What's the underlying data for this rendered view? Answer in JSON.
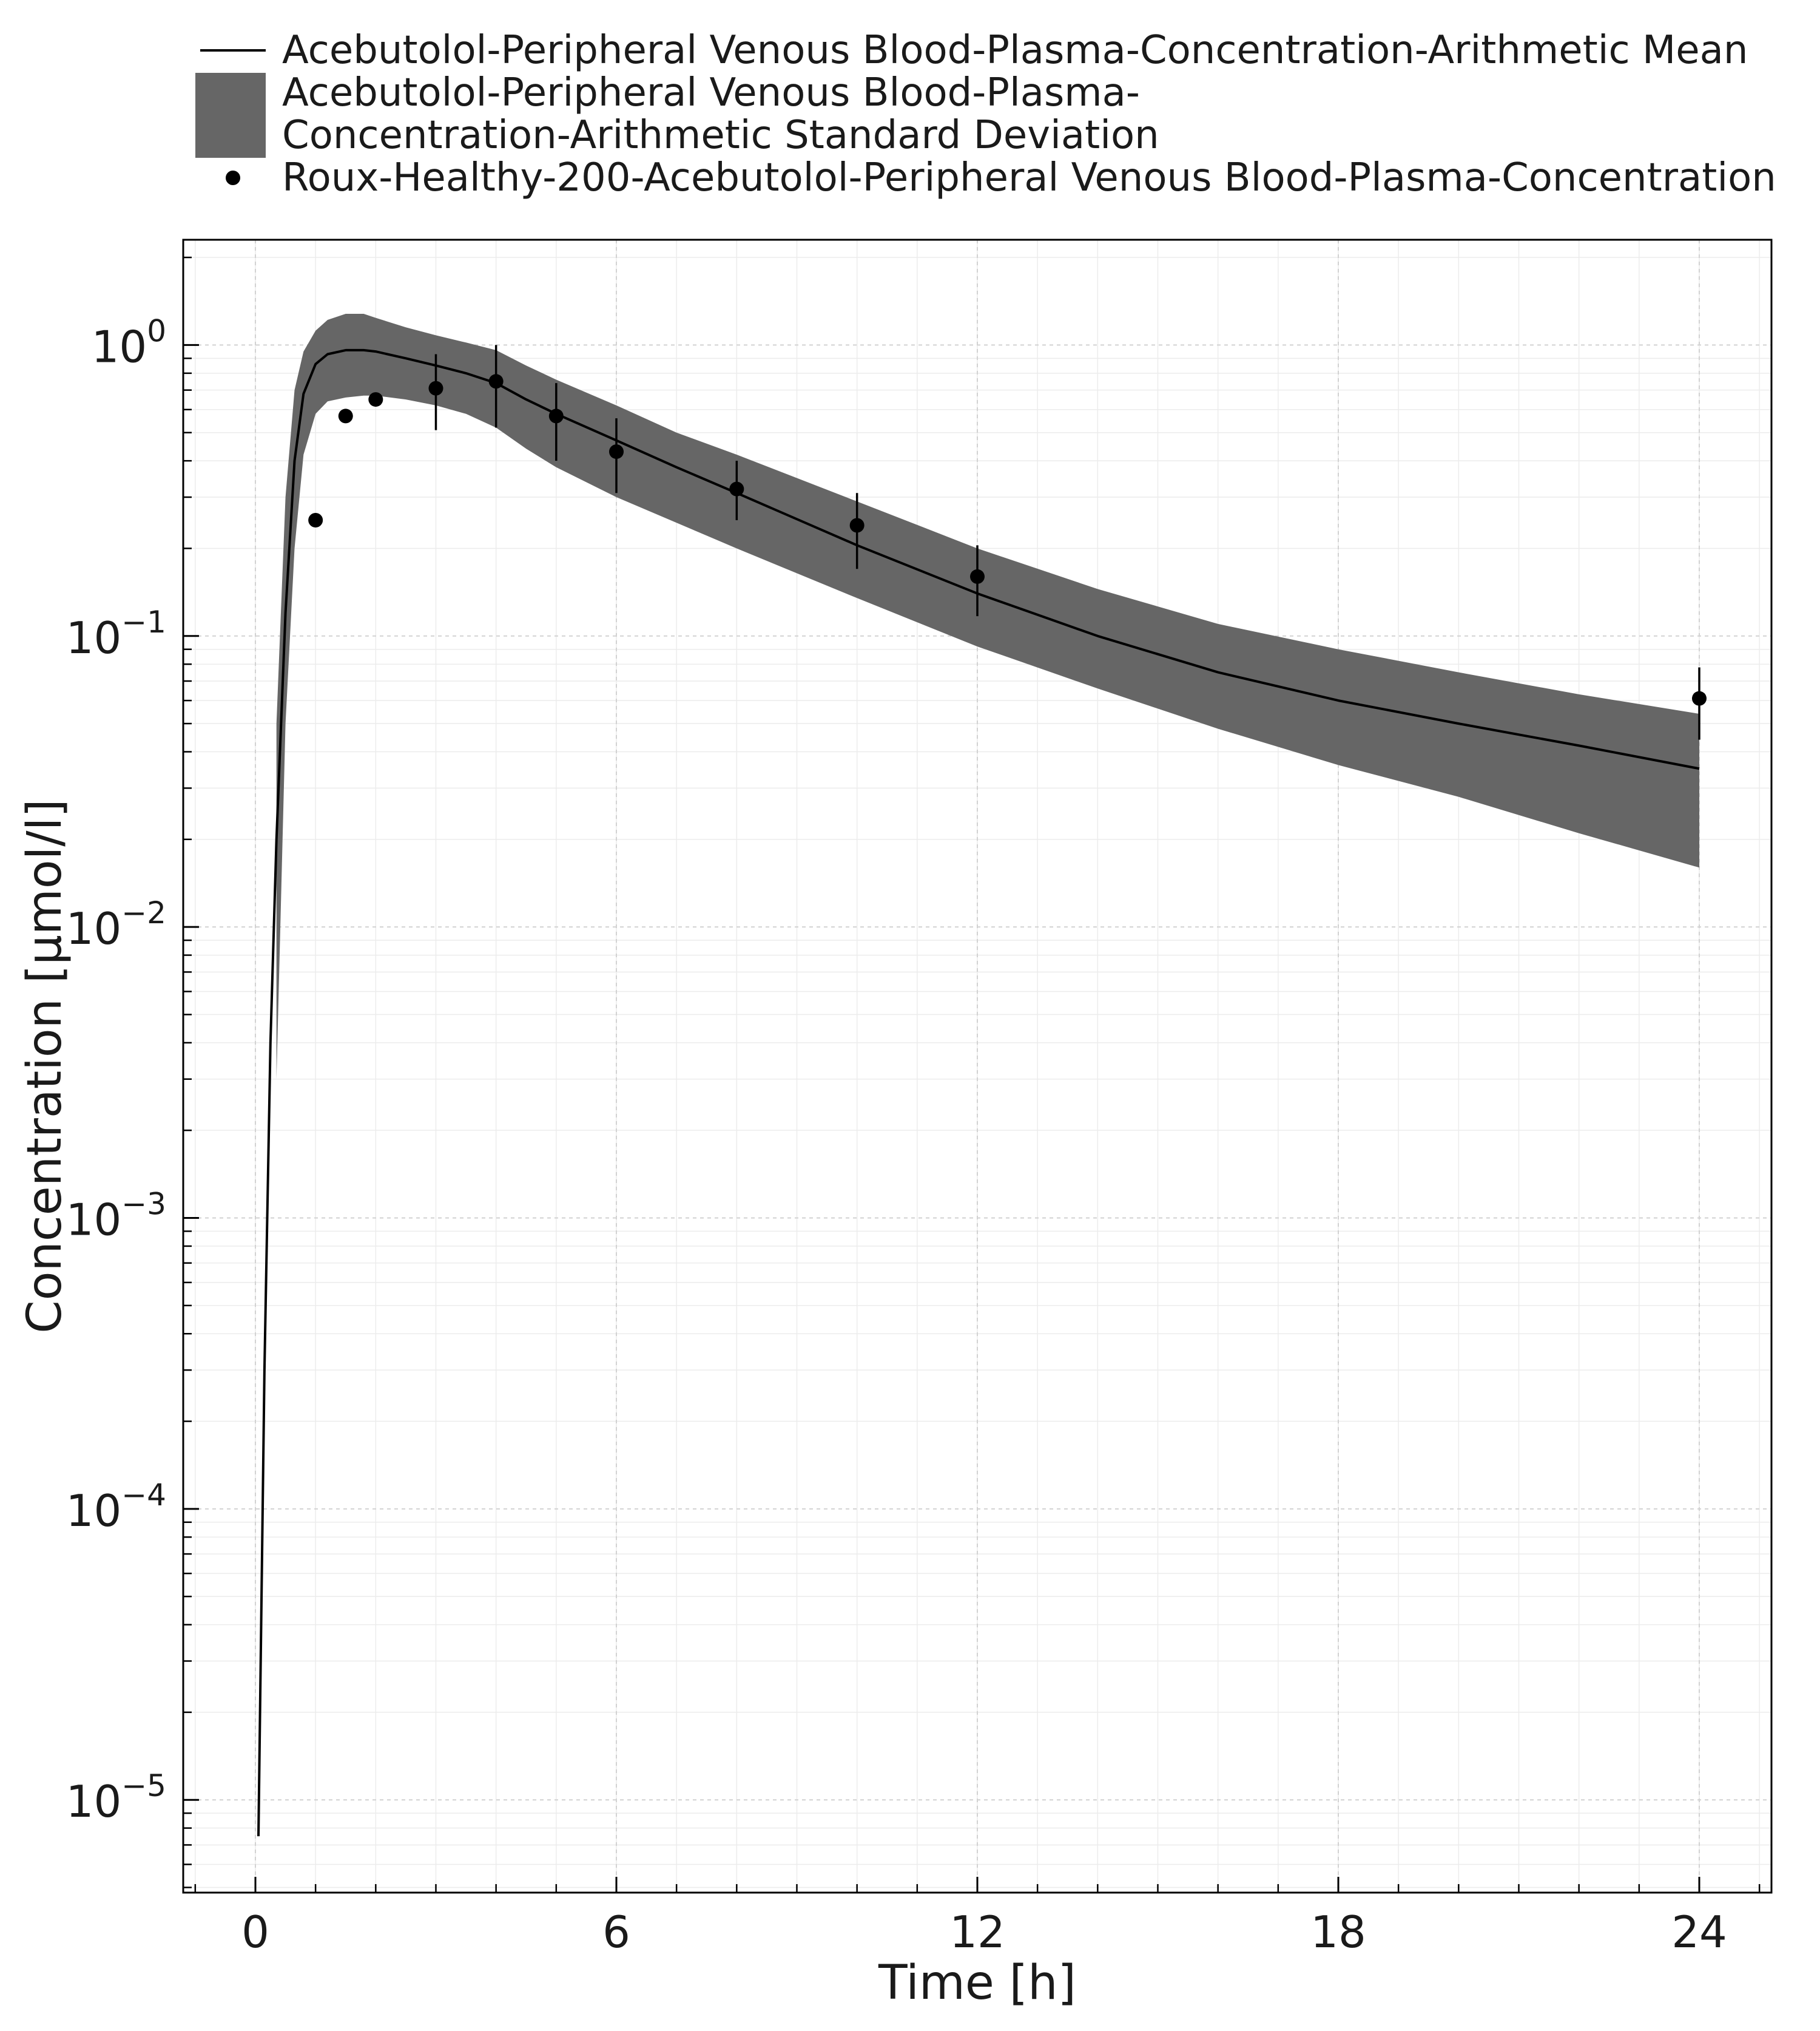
{
  "chart_data": {
    "type": "line",
    "title": "",
    "xlabel": "Time [h]",
    "ylabel": "Concentration [µmol/l]",
    "xlim": [
      -1.2,
      25.2
    ],
    "ylim": [
      4.8e-06,
      2.3
    ],
    "yscale": "log",
    "xticks": [
      0,
      6,
      12,
      18,
      24
    ],
    "xtick_labels": [
      "0",
      "6",
      "12",
      "18",
      "24"
    ],
    "yticks": [
      1e-05,
      0.0001,
      0.001,
      0.01,
      0.1,
      1
    ],
    "ytick_labels": [
      {
        "base": "10",
        "exp": "−5"
      },
      {
        "base": "10",
        "exp": "−4"
      },
      {
        "base": "10",
        "exp": "−3"
      },
      {
        "base": "10",
        "exp": "−2"
      },
      {
        "base": "10",
        "exp": "−1"
      },
      {
        "base": "10",
        "exp": "0"
      }
    ],
    "grid": true,
    "legend_position": "top",
    "legend": [
      {
        "kind": "line",
        "lines": [
          "Acebutolol-Peripheral Venous Blood-Plasma-Concentration-Arithmetic Mean"
        ]
      },
      {
        "kind": "band",
        "lines": [
          "Acebutolol-Peripheral Venous Blood-Plasma-",
          "Concentration-Arithmetic Standard Deviation"
        ]
      },
      {
        "kind": "marker",
        "lines": [
          "Roux-Healthy-200-Acebutolol-Peripheral Venous Blood-Plasma-Concentration"
        ]
      }
    ],
    "series": [
      {
        "name": "Acebutolol-Peripheral Venous Blood-Plasma-Concentration-Arithmetic Mean",
        "type": "line",
        "color": "#000000",
        "x": [
          0.05,
          0.15,
          0.25,
          0.35,
          0.5,
          0.65,
          0.8,
          1.0,
          1.2,
          1.5,
          1.8,
          2.0,
          2.5,
          3.0,
          3.5,
          4.0,
          4.5,
          5.0,
          6.0,
          7.0,
          8.0,
          10.0,
          12.0,
          14.0,
          16.0,
          18.0,
          20.0,
          22.0,
          24.0
        ],
        "y": [
          7.5e-06,
          0.0003,
          0.004,
          0.02,
          0.12,
          0.4,
          0.68,
          0.86,
          0.93,
          0.96,
          0.96,
          0.95,
          0.9,
          0.85,
          0.8,
          0.74,
          0.65,
          0.58,
          0.47,
          0.38,
          0.31,
          0.205,
          0.14,
          0.1,
          0.075,
          0.06,
          0.05,
          0.042,
          0.035
        ]
      },
      {
        "name": "Acebutolol-Peripheral Venous Blood-Plasma-Concentration-Arithmetic Standard Deviation",
        "type": "band",
        "color": "#666666",
        "x": [
          0.35,
          0.5,
          0.65,
          0.8,
          1.0,
          1.2,
          1.5,
          1.8,
          2.0,
          2.5,
          3.0,
          3.5,
          4.0,
          4.5,
          5.0,
          6.0,
          7.0,
          8.0,
          10.0,
          12.0,
          14.0,
          16.0,
          18.0,
          20.0,
          22.0,
          24.0
        ],
        "lower": [
          0.003,
          0.05,
          0.2,
          0.42,
          0.58,
          0.64,
          0.66,
          0.67,
          0.67,
          0.65,
          0.62,
          0.58,
          0.52,
          0.44,
          0.38,
          0.3,
          0.245,
          0.2,
          0.135,
          0.092,
          0.066,
          0.048,
          0.036,
          0.028,
          0.021,
          0.016
        ],
        "upper": [
          0.05,
          0.3,
          0.7,
          0.95,
          1.12,
          1.22,
          1.28,
          1.28,
          1.24,
          1.15,
          1.08,
          1.02,
          0.96,
          0.85,
          0.76,
          0.62,
          0.5,
          0.42,
          0.29,
          0.2,
          0.145,
          0.11,
          0.09,
          0.075,
          0.063,
          0.054
        ]
      },
      {
        "name": "Roux-Healthy-200-Acebutolol-Peripheral Venous Blood-Plasma-Concentration",
        "type": "scatter",
        "color": "#000000",
        "x": [
          1.0,
          1.5,
          2.0,
          3.0,
          4.0,
          5.0,
          6.0,
          8.0,
          10.0,
          12.0,
          24.0
        ],
        "y": [
          0.25,
          0.57,
          0.65,
          0.71,
          0.75,
          0.57,
          0.43,
          0.32,
          0.24,
          0.16,
          0.061
        ],
        "yerr_low": [
          null,
          null,
          null,
          0.51,
          0.52,
          0.4,
          0.31,
          0.25,
          0.17,
          0.117,
          0.044
        ],
        "yerr_high": [
          null,
          null,
          null,
          0.93,
          1.0,
          0.74,
          0.56,
          0.4,
          0.31,
          0.205,
          0.078
        ]
      }
    ]
  }
}
